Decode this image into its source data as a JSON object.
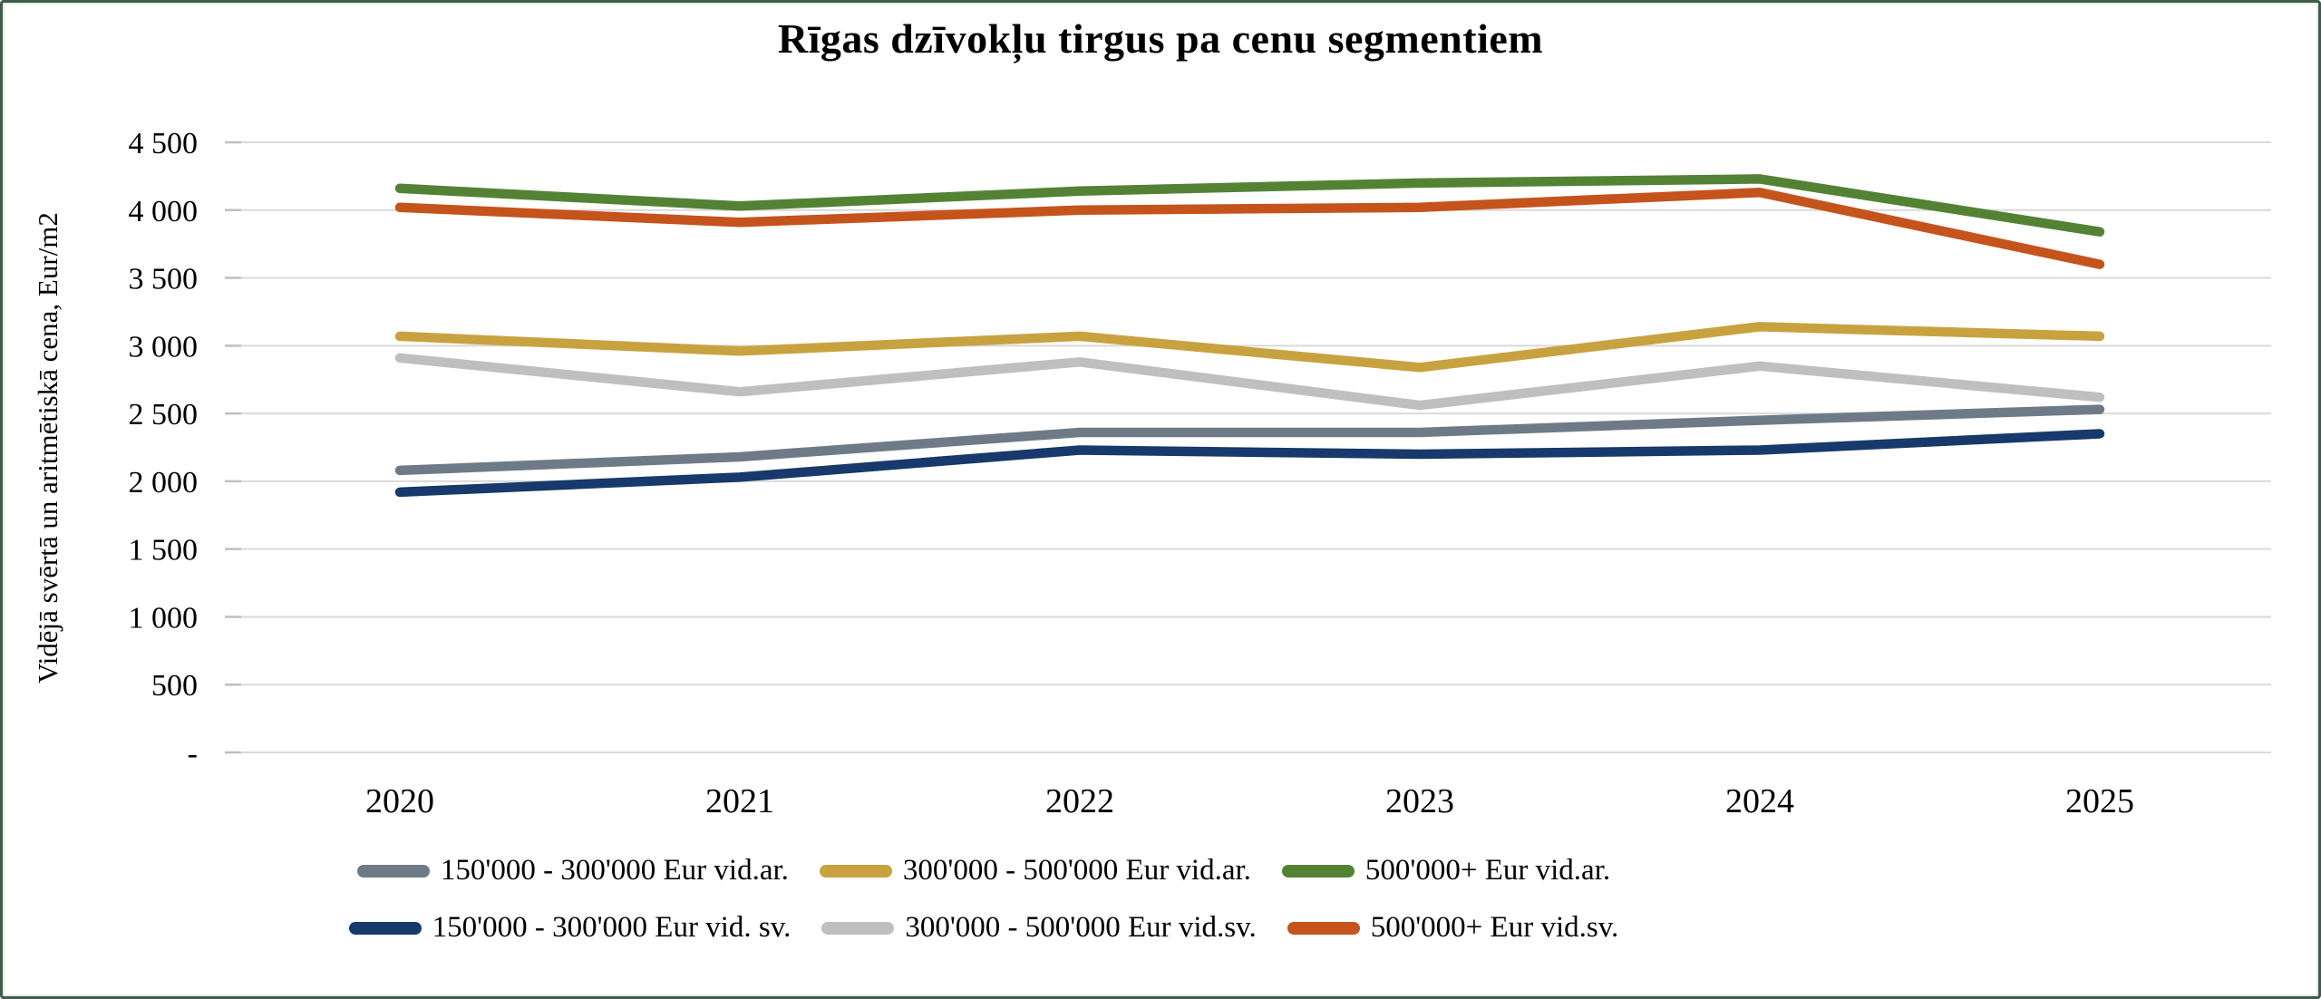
{
  "title": "Rīgas dzīvokļu tirgus pa cenu segmentiem",
  "y_axis": {
    "label": "Vidējā svērtā un aritmētiskā cena, Eur/m2",
    "tick_labels": [
      "4 500",
      "4 000",
      "3 500",
      "3 000",
      "2 500",
      "2 000",
      "1 500",
      "1 000",
      "500",
      "-"
    ]
  },
  "chart_data": {
    "type": "line",
    "title": "Rīgas dzīvokļu tirgus pa cenu segmentiem",
    "xlabel": "",
    "ylabel": "Vidējā svērtā un aritmētiskā cena, Eur/m2",
    "categories": [
      "2020",
      "2021",
      "2022",
      "2023",
      "2024",
      "2025"
    ],
    "ylim": [
      0,
      4500
    ],
    "y_step": 500,
    "grid": true,
    "legend_position": "bottom",
    "series": [
      {
        "name": "150'000 - 300'000 Eur vid.ar.",
        "color": "#6E7B87",
        "values": [
          2080,
          2180,
          2360,
          2360,
          2450,
          2530
        ]
      },
      {
        "name": "300'000 - 500'000 Eur vid.ar.",
        "color": "#C9A240",
        "values": [
          3070,
          2960,
          3070,
          2840,
          3140,
          3070
        ]
      },
      {
        "name": "500'000+ Eur vid.ar.",
        "color": "#548235",
        "values": [
          4160,
          4030,
          4140,
          4200,
          4230,
          3840
        ]
      },
      {
        "name": "150'000 - 300'000 Eur vid. sv.",
        "color": "#17396B",
        "values": [
          1920,
          2030,
          2230,
          2200,
          2230,
          2350
        ]
      },
      {
        "name": "300'000 - 500'000 Eur vid.sv.",
        "color": "#BFBFBF",
        "values": [
          2910,
          2660,
          2880,
          2560,
          2850,
          2620
        ]
      },
      {
        "name": "500'000+ Eur vid.sv.",
        "color": "#C5531C",
        "values": [
          4020,
          3910,
          4000,
          4020,
          4130,
          3600
        ]
      }
    ],
    "colors": {
      "gridline": "#D9D9D9",
      "tick": "#BFBFBF",
      "frame_border": "#3F5B49",
      "text": "#000000"
    }
  },
  "legend_rows": [
    [
      0,
      1,
      2
    ],
    [
      3,
      4,
      5
    ]
  ]
}
